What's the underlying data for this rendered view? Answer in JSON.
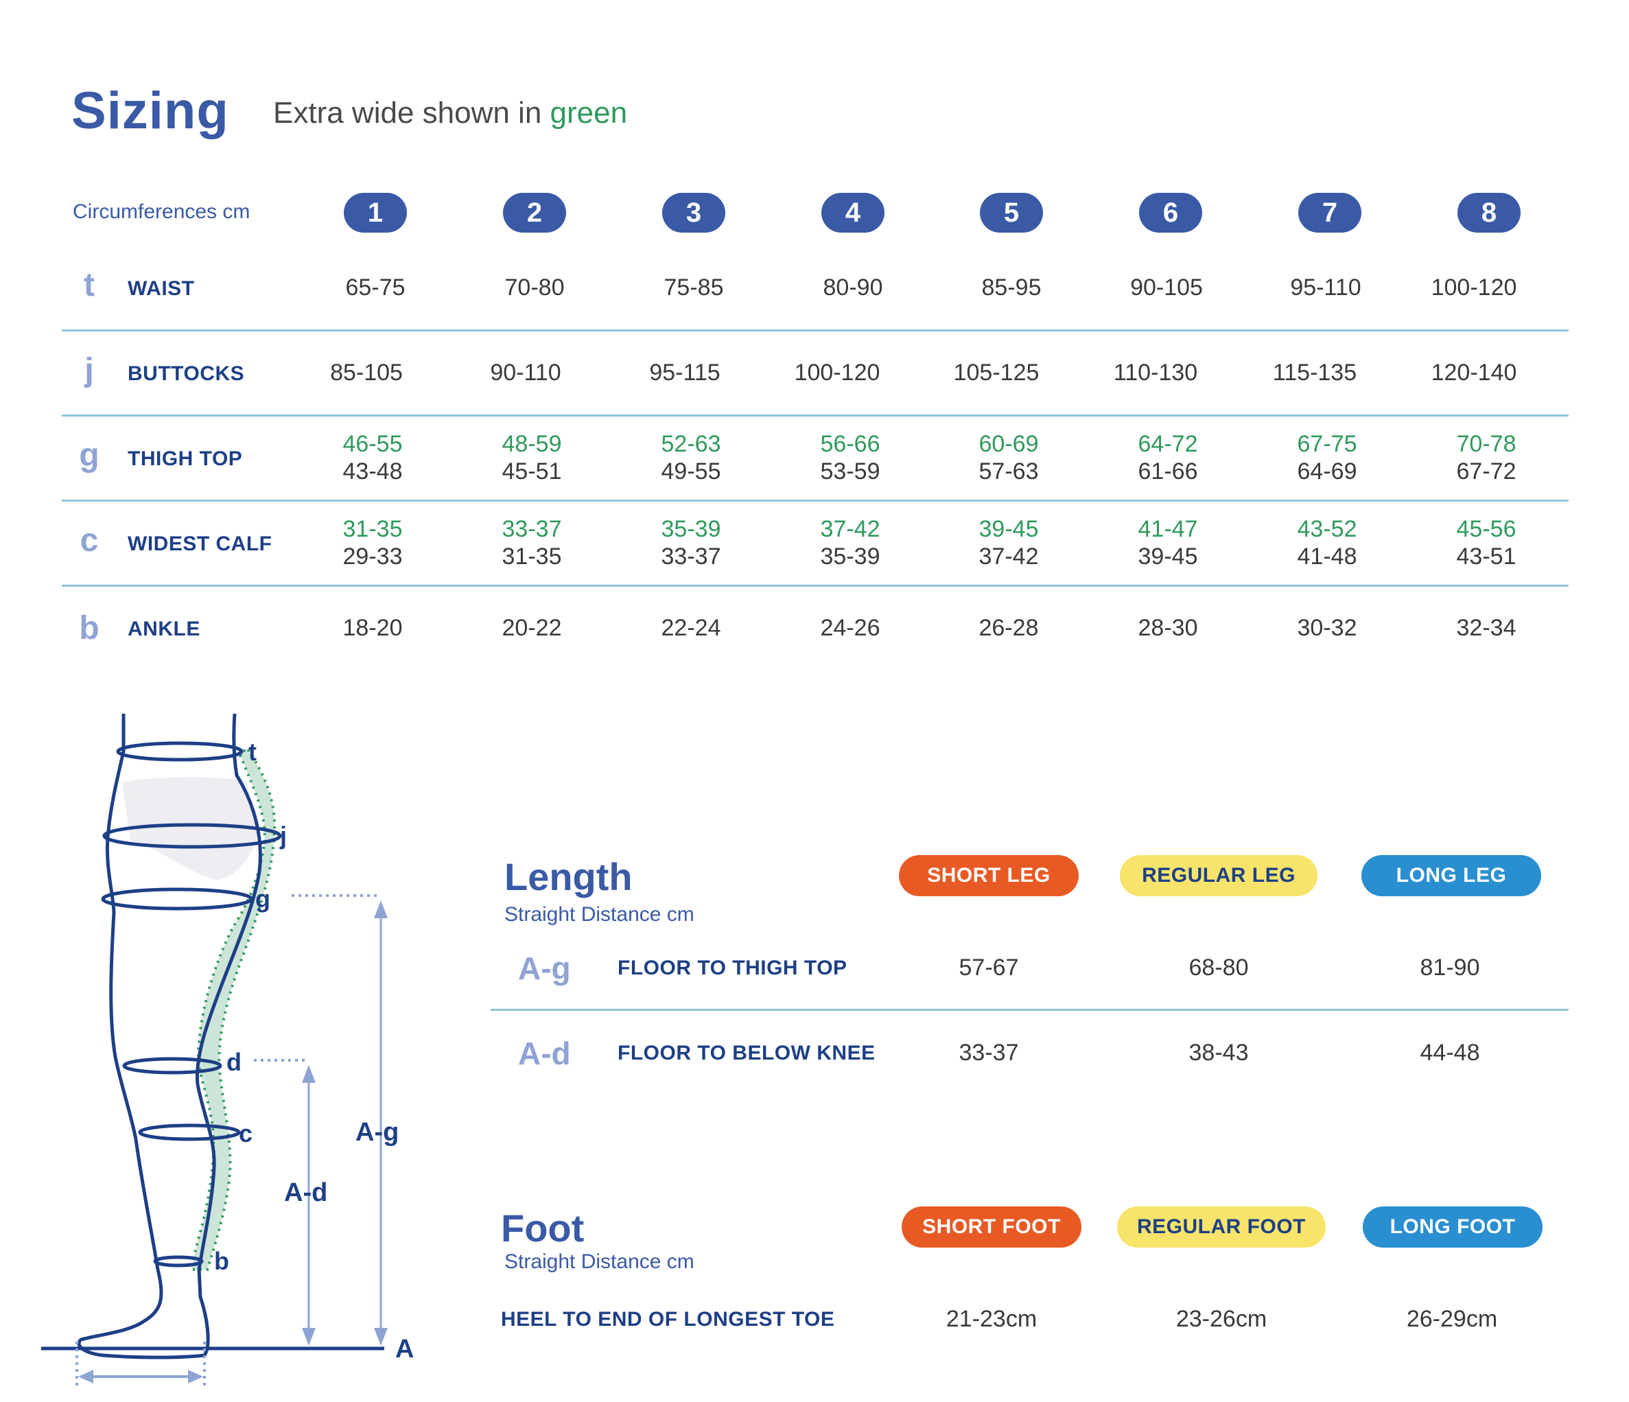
{
  "header": {
    "title": "Sizing",
    "subtitle_prefix": "Extra wide shown in ",
    "subtitle_green": "green"
  },
  "sizing": {
    "label": "Circumferences cm",
    "sizes": [
      "1",
      "2",
      "3",
      "4",
      "5",
      "6",
      "7",
      "8"
    ],
    "rows": [
      {
        "letter": "t",
        "name": "WAIST",
        "values": [
          "65-75",
          "70-80",
          "75-85",
          "80-90",
          "85-95",
          "90-105",
          "95-110",
          "100-120"
        ]
      },
      {
        "letter": "j",
        "name": "BUTTOCKS",
        "values": [
          "85-105",
          "90-110",
          "95-115",
          "100-120",
          "105-125",
          "110-130",
          "115-135",
          "120-140"
        ]
      },
      {
        "letter": "g",
        "name": "THIGH TOP",
        "extra_wide": [
          "46-55",
          "48-59",
          "52-63",
          "56-66",
          "60-69",
          "64-72",
          "67-75",
          "70-78"
        ],
        "values": [
          "43-48",
          "45-51",
          "49-55",
          "53-59",
          "57-63",
          "61-66",
          "64-69",
          "67-72"
        ]
      },
      {
        "letter": "c",
        "name": "WIDEST CALF",
        "extra_wide": [
          "31-35",
          "33-37",
          "35-39",
          "37-42",
          "39-45",
          "41-47",
          "43-52",
          "45-56"
        ],
        "values": [
          "29-33",
          "31-35",
          "33-37",
          "35-39",
          "37-42",
          "39-45",
          "41-48",
          "43-51"
        ]
      },
      {
        "letter": "b",
        "name": "ANKLE",
        "values": [
          "18-20",
          "20-22",
          "22-24",
          "24-26",
          "26-28",
          "28-30",
          "30-32",
          "32-34"
        ]
      }
    ]
  },
  "length": {
    "title": "Length",
    "subtitle": "Straight Distance cm",
    "columns": [
      "SHORT LEG",
      "REGULAR LEG",
      "LONG LEG"
    ],
    "rows": [
      {
        "code": "A-g",
        "name": "FLOOR TO THIGH TOP",
        "values": [
          "57-67",
          "68-80",
          "81-90"
        ]
      },
      {
        "code": "A-d",
        "name": "FLOOR TO BELOW KNEE",
        "values": [
          "33-37",
          "38-43",
          "44-48"
        ]
      }
    ]
  },
  "foot": {
    "title": "Foot",
    "subtitle": "Straight Distance cm",
    "columns": [
      "SHORT FOOT",
      "REGULAR FOOT",
      "LONG FOOT"
    ],
    "row": {
      "name": "HEEL TO END OF LONGEST TOE",
      "values": [
        "21-23cm",
        "23-26cm",
        "26-29cm"
      ]
    }
  },
  "diagram": {
    "labels": [
      "t",
      "j",
      "g",
      "d",
      "c",
      "b",
      "A"
    ],
    "measure_labels": [
      "A-g",
      "A-d"
    ],
    "colors": {
      "outline": "#1d3f86",
      "extra_wide": "#2f9a5c",
      "arrow": "#8fa3d4"
    }
  }
}
